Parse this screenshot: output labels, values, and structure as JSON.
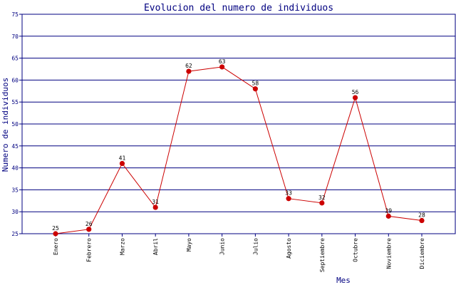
{
  "chart_data": {
    "type": "line",
    "title": "Evolucion del numero de individuos",
    "xlabel": "Mes",
    "ylabel": "Numero de individuos",
    "categories": [
      "Enero",
      "Febrero",
      "Marzo",
      "Abril",
      "Mayo",
      "Junio",
      "Julio",
      "Agosto",
      "Septiembre",
      "Octubre",
      "Noviembre",
      "Diciembre"
    ],
    "series": [
      {
        "values": [
          25,
          26,
          41,
          31,
          62,
          63,
          58,
          33,
          32,
          56,
          29,
          28
        ]
      }
    ],
    "ylim": [
      25,
      75
    ],
    "yticks": [
      "25",
      "30",
      "35",
      "40",
      "45",
      "50",
      "55",
      "60",
      "65",
      "70",
      "75"
    ],
    "grid": true,
    "colors": {
      "line": "#cc0000",
      "marker": "#cc0000",
      "grid": "#000080",
      "axis": "#000080",
      "text": "#000080",
      "label": "#000000"
    }
  }
}
